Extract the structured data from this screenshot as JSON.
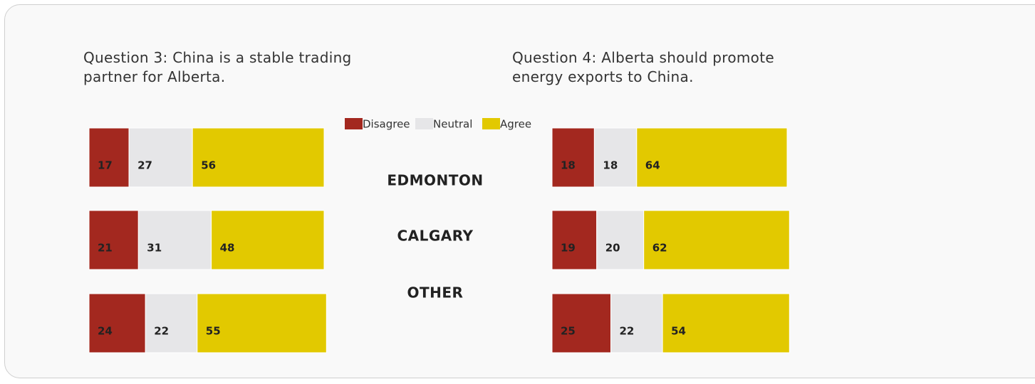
{
  "chart_data": [
    {
      "type": "bar",
      "orientation": "horizontal",
      "stacked": true,
      "title": "Question 3: China is a stable trading partner for Alberta.",
      "categories": [
        "EDMONTON",
        "CALGARY",
        "OTHER"
      ],
      "series": [
        {
          "name": "Disagree",
          "color": "#a3281f",
          "values": [
            17,
            21,
            24
          ]
        },
        {
          "name": "Neutral",
          "color": "#e6e6e8",
          "values": [
            27,
            31,
            22
          ]
        },
        {
          "name": "Agree",
          "color": "#e2c900",
          "values": [
            56,
            48,
            55
          ]
        }
      ]
    },
    {
      "type": "bar",
      "orientation": "horizontal",
      "stacked": true,
      "title": "Question 4: Alberta should promote energy exports to China.",
      "series": [
        {
          "color": "#a3281f",
          "values": [
            18,
            19,
            25
          ]
        },
        {
          "color": "#e6e6e8",
          "values": [
            18,
            20,
            22
          ]
        },
        {
          "color": "#e2c900",
          "values": [
            64,
            62,
            54
          ]
        }
      ]
    }
  ]
}
